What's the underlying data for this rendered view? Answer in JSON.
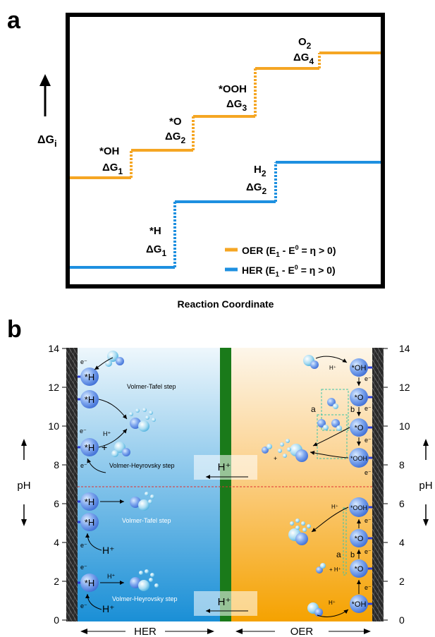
{
  "panel_a": {
    "label": "a",
    "y_label_main": "ΔG",
    "y_label_sub": "i",
    "x_label": "Reaction Coordinate",
    "colors": {
      "oer": "#f5a623",
      "her": "#1e90e0",
      "frame": "#000000"
    },
    "oer_steps": [
      {
        "species": "*OH",
        "delta": "ΔG",
        "sub": "1"
      },
      {
        "species": "*O",
        "delta": "ΔG",
        "sub": "2"
      },
      {
        "species": "*OOH",
        "delta": "ΔG",
        "sub": "3"
      },
      {
        "species": "O",
        "species_sub": "2",
        "delta": "ΔG",
        "sub": "4"
      }
    ],
    "her_steps": [
      {
        "species": "*H",
        "delta": "ΔG",
        "sub": "1"
      },
      {
        "species": "H",
        "species_sub": "2",
        "delta": "ΔG",
        "sub": "2"
      }
    ],
    "legend": [
      {
        "main": "OER (E",
        "sub": "1",
        "rest": " - E",
        "sup": "0",
        "end": " = η > 0)"
      },
      {
        "main": "HER (E",
        "sub": "1",
        "rest": " - E",
        "sup": "0",
        "end": " = η > 0)"
      }
    ]
  },
  "panel_b": {
    "label": "b",
    "axis_title": "pH",
    "ticks": [
      "0",
      "2",
      "4",
      "6",
      "8",
      "10",
      "12",
      "14"
    ],
    "bottom_left": "HER",
    "bottom_right": "OER",
    "colors": {
      "her_top": "#e8f4fb",
      "her_bottom": "#1a8fd6",
      "oer_top": "#fdf3e3",
      "oer_bottom": "#f5a200",
      "membrane": "#1a7a1a",
      "divider": "#e03030"
    },
    "her_labels": {
      "volmer_tafel_acid": "Volmer-Tafel step",
      "volmer_heyrovsky_acid": "Volmer-Heyrovsky step",
      "volmer_tafel_base": "Volmer-Tafel step",
      "volmer_heyrovsky_base": "Volmer-Heyrovsky step",
      "adsorbed": "*H",
      "proton": "H⁺",
      "electron": "e⁻",
      "plus": "+"
    },
    "proton_boxes": [
      "H⁺",
      "H⁺"
    ],
    "oer_labels": {
      "oh": "*OH",
      "o": "*O",
      "ooh": "*OOH",
      "a": "a",
      "b": "b",
      "proton": "H⁺",
      "electron": "e⁻",
      "plus_h": "+ H⁺",
      "plus": "+"
    }
  }
}
